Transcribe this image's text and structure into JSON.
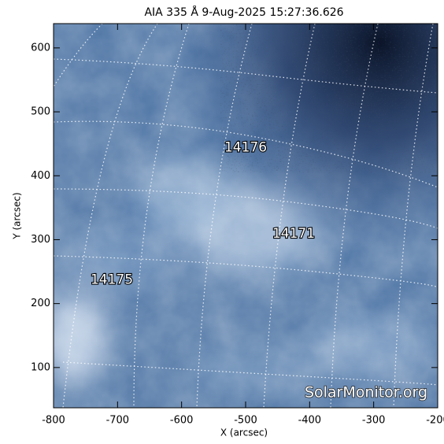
{
  "chart_data": {
    "type": "image",
    "title": "AIA 335 Å  9-Aug-2025 15:27:36.626",
    "xlabel": "X (arcsec)",
    "ylabel": "Y (arcsec)",
    "xlim": [
      -800,
      -200
    ],
    "ylim": [
      37,
      638
    ],
    "xticks": [
      -800,
      -700,
      -600,
      -500,
      -400,
      -300,
      -200
    ],
    "yticks": [
      100,
      200,
      300,
      400,
      500,
      600
    ],
    "annotations": [
      {
        "text": "14176",
        "x": -500,
        "y": 444
      },
      {
        "text": "14171",
        "x": -425,
        "y": 309
      },
      {
        "text": "14175",
        "x": -709,
        "y": 237
      }
    ],
    "watermark": "SolarMonitor.org"
  }
}
